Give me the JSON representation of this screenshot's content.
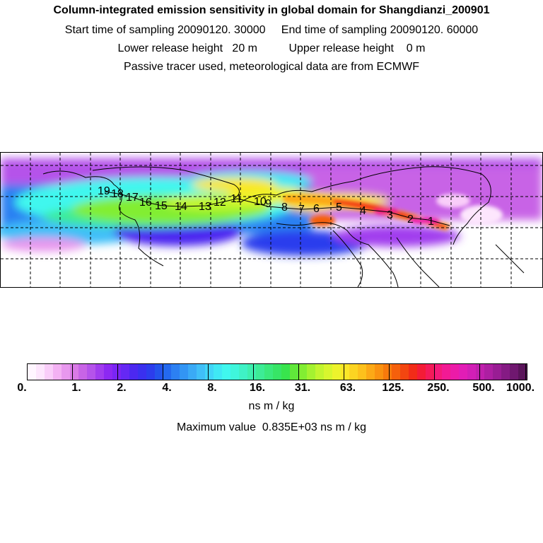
{
  "header": {
    "title": "Column-integrated emission sensitivity in global domain for Shangdianzi_200901",
    "line2": "Start time of sampling 20090120. 30000     End time of sampling 20090120. 60000",
    "line3": "Lower release height   20 m          Upper release height    0 m",
    "line4": "Passive tracer used, meteorological data are from ECMWF"
  },
  "map": {
    "trajectory_labels": [
      "1",
      "2",
      "3",
      "4",
      "5",
      "6",
      "7",
      "8",
      "9",
      "10",
      "11",
      "12",
      "13",
      "14",
      "15",
      "16",
      "17",
      "18",
      "19"
    ],
    "gridlines": "dashed"
  },
  "colorbar": {
    "tick_labels": [
      "0.",
      "1.",
      "2.",
      "4.",
      "8.",
      "16.",
      "31.",
      "63.",
      "125.",
      "250.",
      "500.",
      "1000."
    ],
    "unit": "ns m / kg",
    "colors": [
      "#fff6ff",
      "#fde6fd",
      "#f9cdf9",
      "#f3b1f3",
      "#e898ee",
      "#d97ae6",
      "#c864e6",
      "#b553ea",
      "#a13cee",
      "#8d28f2",
      "#7a25f4",
      "#6528f4",
      "#4c28f0",
      "#3a30ef",
      "#2c3ded",
      "#2353ec",
      "#2469ef",
      "#2c80f2",
      "#3295f4",
      "#3aaaf6",
      "#40bff8",
      "#40d5f8",
      "#3fe8f4",
      "#40f7ee",
      "#3ff6dc",
      "#3ff2c6",
      "#3eefae",
      "#3dec96",
      "#3ae97c",
      "#37e566",
      "#38e44d",
      "#60e83a",
      "#82ee32",
      "#a4f230",
      "#c2f52f",
      "#d8f62e",
      "#edf32c",
      "#fbe628",
      "#fcd422",
      "#fdc11c",
      "#fca916",
      "#fa9210",
      "#f87a0c",
      "#f5600c",
      "#f34610",
      "#f22c18",
      "#f41c36",
      "#f41a5a",
      "#f41a7a",
      "#f21a94",
      "#ec1ba8",
      "#e21db6",
      "#d21fb6",
      "#c020ad",
      "#ad1fa2",
      "#991d94",
      "#851b84",
      "#701870",
      "#5a145a"
    ]
  },
  "footer": {
    "max_value": "Maximum value  0.835E+03 ns m / kg"
  }
}
